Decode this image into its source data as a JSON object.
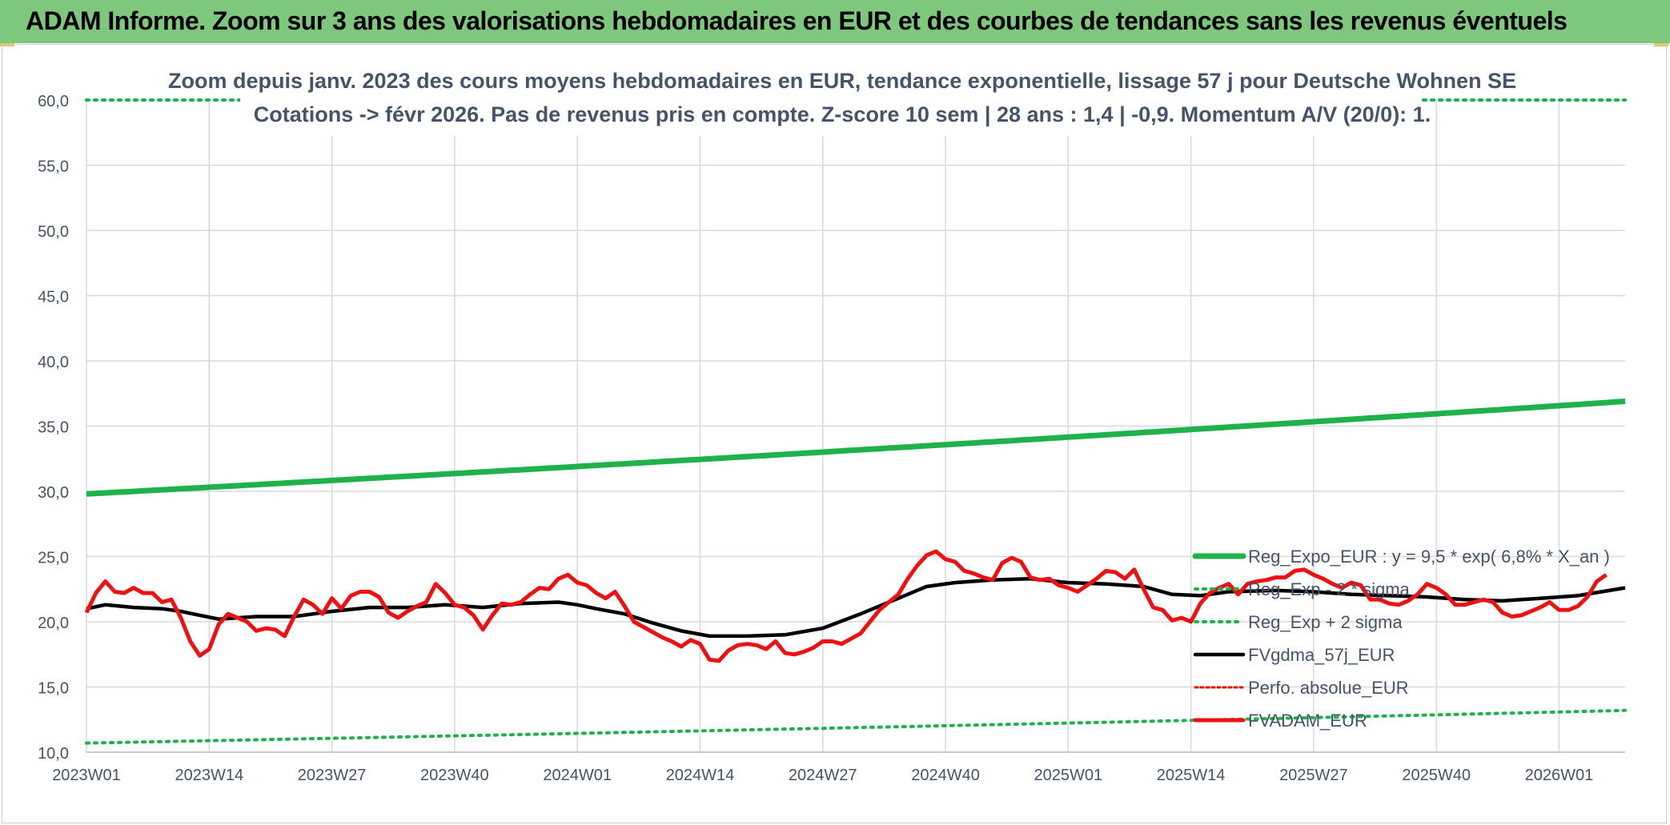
{
  "header": {
    "title": "ADAM Informe. Zoom sur 3 ans des valorisations hebdomadaires en EUR et des courbes de tendances sans les revenus éventuels"
  },
  "chart_data": {
    "type": "line",
    "title": "Zoom depuis janv. 2023 des cours moyens hebdomadaires en EUR, tendance exponentielle, lissage 57 j pour Deutsche Wohnen SE",
    "subtitle": "Cotations -> févr 2026. Pas de revenus pris en compte. Z-score 10 sem | 28 ans : 1,4 | -0,9. Momentum A/V (20/0): 1.",
    "xlabel": "",
    "ylabel": "",
    "ylim": [
      10,
      60
    ],
    "yticks": [
      "10,0",
      "15,0",
      "20,0",
      "25,0",
      "30,0",
      "35,0",
      "40,0",
      "45,0",
      "50,0",
      "55,0",
      "60,0"
    ],
    "x_tick_labels": [
      "2023W01",
      "2023W14",
      "2023W27",
      "2023W40",
      "2024W01",
      "2024W14",
      "2024W27",
      "2024W40",
      "2025W01",
      "2025W14",
      "2025W27",
      "2025W40",
      "2026W01"
    ],
    "x_tick_index": [
      0,
      13,
      26,
      39,
      52,
      65,
      78,
      91,
      104,
      117,
      130,
      143,
      156
    ],
    "n_weeks": 164,
    "grid": true,
    "legend_position": "right",
    "colors": {
      "reg_expo": "#1fb14a",
      "sigma": "#1fb14a",
      "fvgdma": "#000000",
      "perfo": "#ff0000",
      "fvadam": "#ee1111"
    },
    "legend": [
      "Reg_Expo_EUR : y = 9,5 * exp( 6,8% *  X_an )",
      "Reg_Exp - 2 * sigma",
      "Reg_Exp + 2 sigma",
      "FVgdma_57j_EUR",
      "Perfo. absolue_EUR",
      "FVADAM_EUR"
    ],
    "series": [
      {
        "name": "Reg_Expo_EUR",
        "start": 29.8,
        "end": 36.9
      },
      {
        "name": "Reg_Exp - 2 * sigma",
        "start": 10.7,
        "end": 13.2
      },
      {
        "name": "Reg_Exp + 2 sigma",
        "start": 60.0,
        "end": 60.0
      },
      {
        "name": "FVgdma_57j_EUR",
        "key_weeks": [
          0,
          2,
          5,
          8,
          10,
          12,
          14,
          16,
          18,
          22,
          26,
          30,
          34,
          38,
          42,
          46,
          50,
          52,
          54,
          57,
          60,
          63,
          66,
          70,
          74,
          78,
          82,
          86,
          89,
          92,
          96,
          100,
          104,
          108,
          112,
          115,
          118,
          121,
          126,
          130,
          134,
          138,
          142,
          146,
          150,
          154,
          158,
          163
        ],
        "key_values": [
          21.0,
          21.3,
          21.1,
          21.0,
          20.8,
          20.5,
          20.2,
          20.3,
          20.4,
          20.4,
          20.8,
          21.1,
          21.1,
          21.3,
          21.1,
          21.4,
          21.5,
          21.3,
          21.0,
          20.6,
          19.9,
          19.3,
          18.9,
          18.9,
          19.0,
          19.5,
          20.6,
          21.8,
          22.7,
          23.0,
          23.2,
          23.3,
          23.0,
          22.9,
          22.7,
          22.1,
          22.0,
          22.3,
          22.4,
          22.3,
          22.1,
          22.0,
          21.9,
          21.7,
          21.6,
          21.8,
          22.0,
          22.6
        ]
      },
      {
        "name": "Perfo. absolue_EUR"
      },
      {
        "name": "FVADAM_EUR",
        "key_weeks": [
          0,
          1,
          2,
          3,
          4,
          5,
          6,
          7,
          8,
          9,
          10,
          11,
          12,
          13,
          14,
          15,
          16,
          17,
          18,
          19,
          20,
          21,
          22,
          23,
          24,
          25,
          26,
          27,
          28,
          29,
          30,
          31,
          32,
          33,
          34,
          35,
          36,
          37,
          38,
          39,
          40,
          41,
          42,
          43,
          44,
          45,
          46,
          47,
          48,
          49,
          50,
          51,
          52,
          53,
          54,
          55,
          56,
          57,
          58,
          59,
          60,
          61,
          62,
          63,
          64,
          65,
          66,
          67,
          68,
          69,
          70,
          71,
          72,
          73,
          74,
          75,
          76,
          77,
          78,
          79,
          80,
          81,
          82,
          83,
          84,
          85,
          86,
          87,
          88,
          89,
          90,
          91,
          92,
          93,
          94,
          95,
          96,
          97,
          98,
          99,
          100,
          101,
          102,
          103,
          104,
          105,
          106,
          107,
          108,
          109,
          110,
          111,
          112,
          113,
          114,
          115,
          116,
          117,
          118,
          119,
          120,
          121,
          122,
          123,
          124,
          125,
          126,
          127,
          128,
          129,
          130,
          131,
          132,
          133,
          134,
          135,
          136,
          137,
          138,
          139,
          140,
          141,
          142,
          143,
          144,
          145,
          146,
          147,
          148,
          149,
          150,
          151,
          152,
          153,
          154,
          155,
          156,
          157,
          158,
          159,
          160,
          161,
          162,
          163
        ],
        "key_values": [
          20.7,
          22.2,
          23.1,
          22.3,
          22.2,
          22.6,
          22.2,
          22.2,
          21.5,
          21.7,
          20.3,
          18.5,
          17.4,
          17.9,
          19.8,
          20.6,
          20.3,
          20.0,
          19.3,
          19.5,
          19.4,
          18.9,
          20.4,
          21.7,
          21.3,
          20.6,
          21.8,
          21.0,
          22.0,
          22.3,
          22.3,
          21.9,
          20.7,
          20.3,
          20.8,
          21.2,
          21.5,
          22.9,
          22.2,
          21.3,
          21.1,
          20.5,
          19.4,
          20.5,
          21.4,
          21.3,
          21.5,
          22.1,
          22.6,
          22.5,
          23.3,
          23.6,
          23.0,
          22.8,
          22.2,
          21.8,
          22.3,
          21.2,
          20.0,
          19.6,
          19.2,
          18.8,
          18.5,
          18.1,
          18.6,
          18.3,
          17.1,
          17.0,
          17.8,
          18.2,
          18.3,
          18.2,
          17.9,
          18.5,
          17.6,
          17.5,
          17.7,
          18.0,
          18.5,
          18.5,
          18.3,
          18.7,
          19.1,
          20.0,
          20.9,
          21.5,
          22.1,
          23.3,
          24.3,
          25.1,
          25.4,
          24.8,
          24.6,
          23.9,
          23.7,
          23.4,
          23.2,
          24.5,
          24.9,
          24.6,
          23.4,
          23.2,
          23.3,
          22.8,
          22.6,
          22.3,
          22.8,
          23.3,
          23.9,
          23.8,
          23.3,
          24.0,
          22.5,
          21.1,
          20.9,
          20.1,
          20.3,
          20.0,
          21.4,
          22.2,
          22.6,
          22.9,
          22.1,
          22.9,
          23.1,
          23.2,
          23.4,
          23.4,
          23.9,
          24.0,
          23.6,
          23.3,
          22.9,
          22.6,
          23.0,
          22.8,
          21.7,
          21.7,
          21.4,
          21.3,
          21.6,
          22.1,
          22.9,
          22.6,
          22.1,
          21.3,
          21.3,
          21.5,
          21.7,
          21.5,
          20.7,
          20.4,
          20.5,
          20.8,
          21.1,
          21.5,
          20.9,
          20.9,
          21.2,
          21.9,
          23.1,
          23.6
        ]
      }
    ]
  }
}
